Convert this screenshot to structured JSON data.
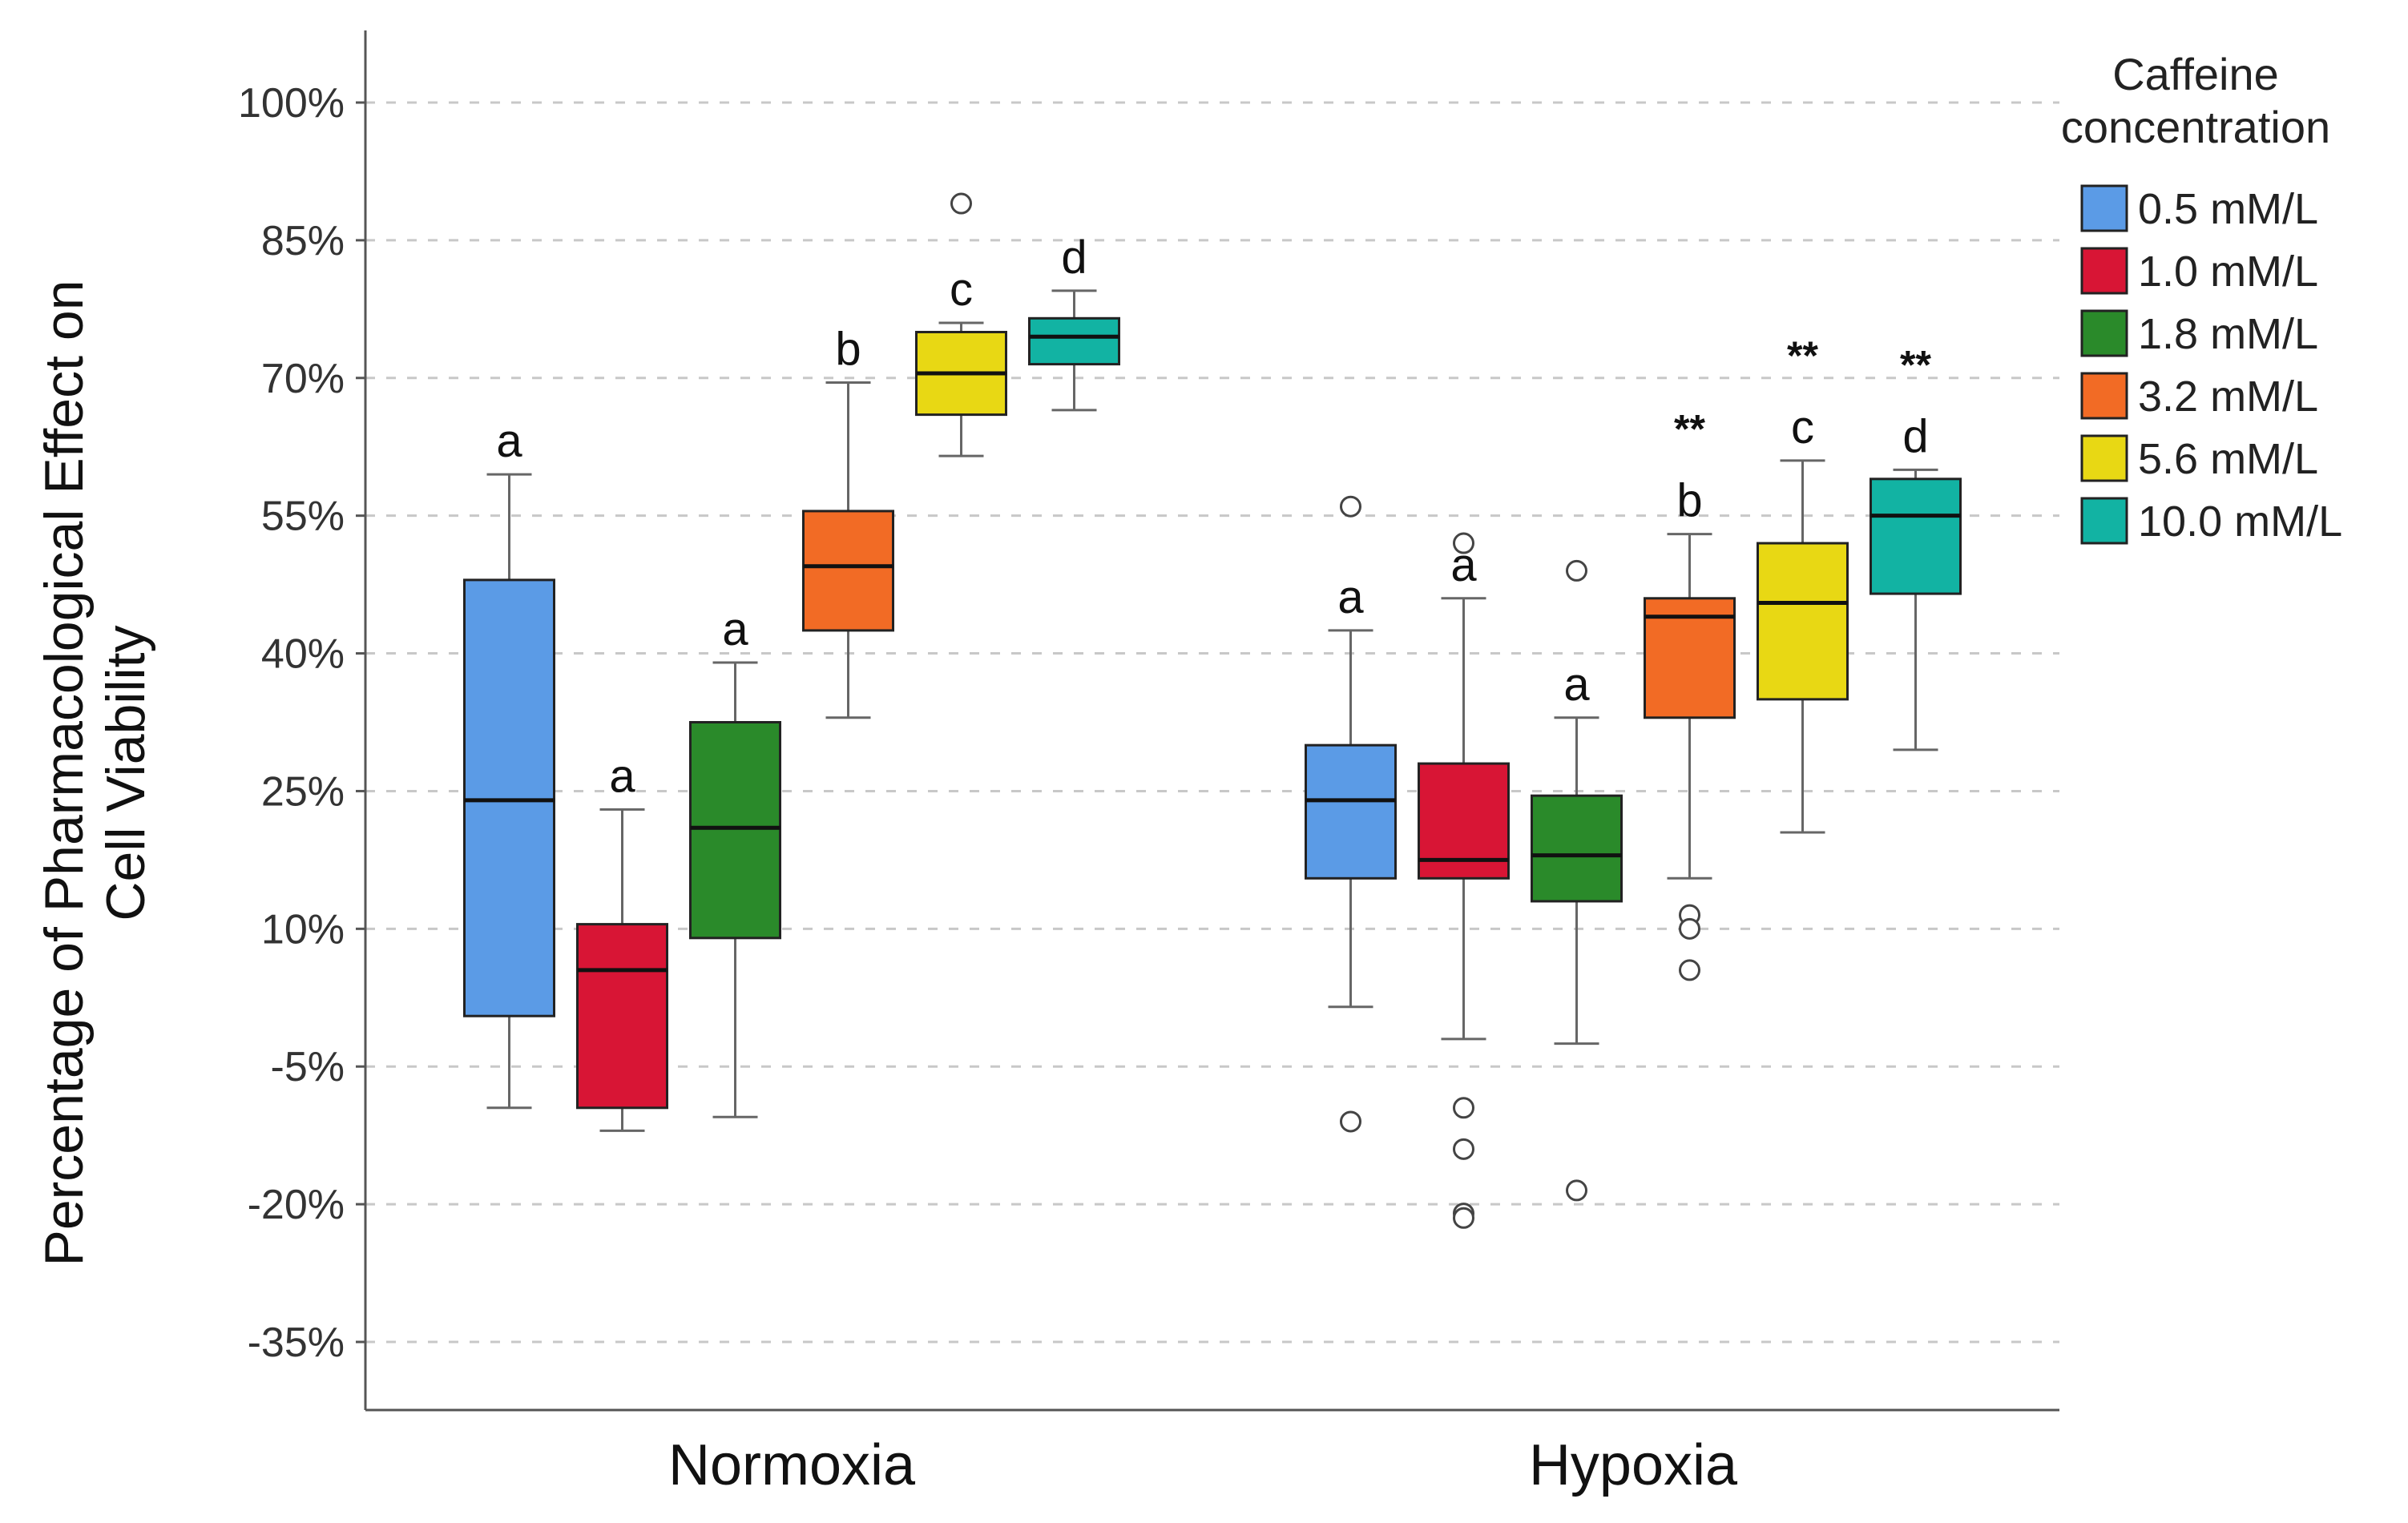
{
  "chart_data": {
    "type": "box",
    "y_axis": {
      "label_lines": [
        "Percentage of Pharmacological Effect on",
        "Cell Viability"
      ],
      "range": [
        -42,
        105
      ],
      "ticks": [
        100,
        85,
        70,
        55,
        40,
        25,
        10,
        -5,
        -20,
        -35
      ],
      "tick_labels": [
        "100%",
        "85%",
        "70%",
        "55%",
        "40%",
        "25%",
        "10%",
        "-5%",
        "-20%",
        "-35%"
      ],
      "grid": true
    },
    "categories": [
      "Normoxia",
      "Hypoxia"
    ],
    "legend": {
      "title_lines": [
        "Caffeine",
        "concentration"
      ],
      "position": "right"
    },
    "series": [
      {
        "name": "0.5 mM/L",
        "color": "#5b9be6",
        "boxes": [
          {
            "min": -9.5,
            "q1": 0.5,
            "median": 24,
            "q3": 48,
            "max": 59.5,
            "outliers": [],
            "letter": "a",
            "stars": ""
          },
          {
            "min": 1.5,
            "q1": 15.5,
            "median": 24,
            "q3": 30,
            "max": 42.5,
            "outliers": [
              56,
              -11
            ],
            "letter": "a",
            "stars": ""
          }
        ]
      },
      {
        "name": "1.0  mM/L",
        "color": "#d81535",
        "boxes": [
          {
            "min": -12,
            "q1": -9.5,
            "median": 5.5,
            "q3": 10.5,
            "max": 23,
            "outliers": [],
            "letter": "a",
            "stars": ""
          },
          {
            "min": -2,
            "q1": 15.5,
            "median": 17.5,
            "q3": 28,
            "max": 46,
            "outliers": [
              52,
              -9.5,
              -14,
              -21,
              -21.5
            ],
            "letter": "a",
            "stars": ""
          }
        ]
      },
      {
        "name": "1.8  mM/L",
        "color": "#2a8a2a",
        "boxes": [
          {
            "min": -10.5,
            "q1": 9,
            "median": 21,
            "q3": 32.5,
            "max": 39,
            "outliers": [],
            "letter": "a",
            "stars": ""
          },
          {
            "min": -2.5,
            "q1": 13,
            "median": 18,
            "q3": 24.5,
            "max": 33,
            "outliers": [
              49,
              -18.5
            ],
            "letter": "a",
            "stars": ""
          }
        ]
      },
      {
        "name": "3.2  mM/L",
        "color": "#f26b25",
        "boxes": [
          {
            "min": 33,
            "q1": 42.5,
            "median": 49.5,
            "q3": 55.5,
            "max": 69.5,
            "outliers": [],
            "letter": "b",
            "stars": ""
          },
          {
            "min": 15.5,
            "q1": 33,
            "median": 44,
            "q3": 46,
            "max": 53,
            "outliers": [
              11.5,
              10,
              5.5
            ],
            "letter": "b",
            "stars": "**"
          }
        ]
      },
      {
        "name": "5.6  mM/L",
        "color": "#e8d814",
        "boxes": [
          {
            "min": 61.5,
            "q1": 66,
            "median": 70.5,
            "q3": 75,
            "max": 76,
            "outliers": [
              89
            ],
            "letter": "c",
            "stars": ""
          },
          {
            "min": 20.5,
            "q1": 35,
            "median": 45.5,
            "q3": 52,
            "max": 61,
            "outliers": [],
            "letter": "c",
            "stars": "**"
          }
        ]
      },
      {
        "name": "10.0  mM/L",
        "color": "#12b3a3",
        "boxes": [
          {
            "min": 66.5,
            "q1": 71.5,
            "median": 74.5,
            "q3": 76.5,
            "max": 79.5,
            "outliers": [],
            "letter": "d",
            "stars": ""
          },
          {
            "min": 29.5,
            "q1": 46.5,
            "median": 55,
            "q3": 59,
            "max": 60,
            "outliers": [],
            "letter": "d",
            "stars": "**"
          }
        ]
      }
    ]
  }
}
